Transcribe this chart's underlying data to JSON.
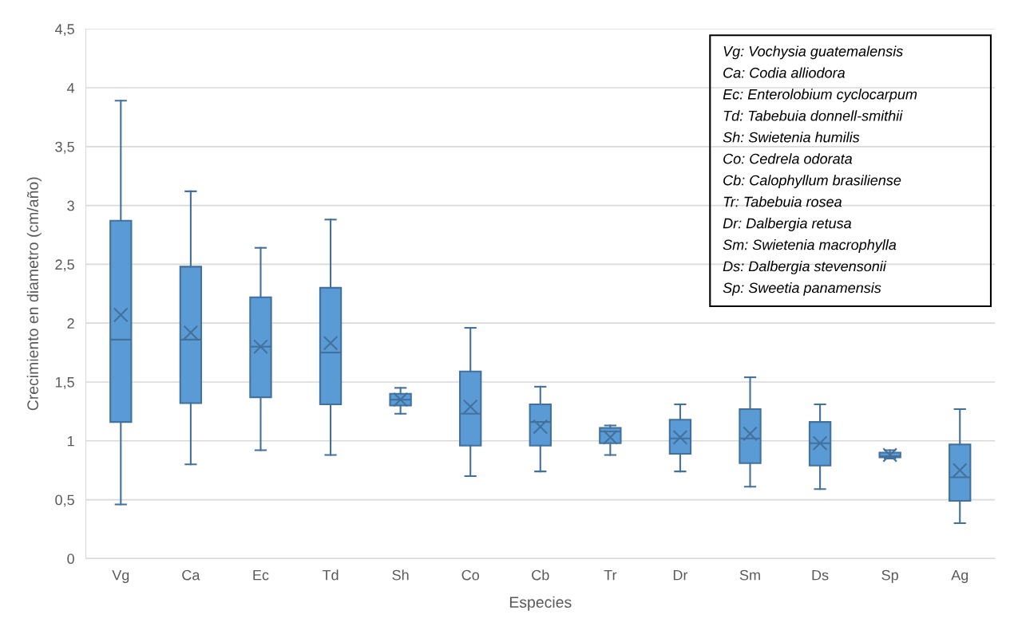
{
  "chart_data": {
    "type": "box",
    "xlabel": "Especies",
    "ylabel": "Crecimiento en diametro (cm/año)",
    "categories": [
      "Vg",
      "Ca",
      "Ec",
      "Td",
      "Sh",
      "Co",
      "Cb",
      "Tr",
      "Dr",
      "Sm",
      "Ds",
      "Sp",
      "Ag"
    ],
    "color": "#5b9bd5",
    "boxes": [
      {
        "low": 0.46,
        "q1": 1.16,
        "median": 1.86,
        "q3": 2.87,
        "high": 3.89,
        "mean": 2.07
      },
      {
        "low": 0.8,
        "q1": 1.32,
        "median": 1.86,
        "q3": 2.48,
        "high": 3.12,
        "mean": 1.92
      },
      {
        "low": 0.92,
        "q1": 1.37,
        "median": 1.8,
        "q3": 2.22,
        "high": 2.64,
        "mean": 1.8
      },
      {
        "low": 0.88,
        "q1": 1.31,
        "median": 1.75,
        "q3": 2.3,
        "high": 2.88,
        "mean": 1.83
      },
      {
        "low": 1.23,
        "q1": 1.3,
        "median": 1.35,
        "q3": 1.4,
        "high": 1.45,
        "mean": 1.35
      },
      {
        "low": 0.7,
        "q1": 0.96,
        "median": 1.23,
        "q3": 1.59,
        "high": 1.96,
        "mean": 1.29
      },
      {
        "low": 0.74,
        "q1": 0.96,
        "median": 1.16,
        "q3": 1.31,
        "high": 1.46,
        "mean": 1.12
      },
      {
        "low": 0.88,
        "q1": 0.98,
        "median": 1.08,
        "q3": 1.11,
        "high": 1.13,
        "mean": 1.03
      },
      {
        "low": 0.74,
        "q1": 0.89,
        "median": 1.02,
        "q3": 1.18,
        "high": 1.31,
        "mean": 1.03
      },
      {
        "low": 0.61,
        "q1": 0.81,
        "median": 1.02,
        "q3": 1.27,
        "high": 1.54,
        "mean": 1.06
      },
      {
        "low": 0.59,
        "q1": 0.79,
        "median": 0.98,
        "q3": 1.16,
        "high": 1.31,
        "mean": 0.98
      },
      {
        "low": 0.85,
        "q1": 0.86,
        "median": 0.87,
        "q3": 0.9,
        "high": 0.92,
        "mean": 0.88
      },
      {
        "low": 0.3,
        "q1": 0.49,
        "median": 0.69,
        "q3": 0.97,
        "high": 1.27,
        "mean": 0.75
      }
    ],
    "ylim": [
      0,
      4.5
    ],
    "yticks": [
      0,
      {
        "value": 0.5,
        "label": "0,5"
      },
      1,
      {
        "value": 1.5,
        "label": "1,5"
      },
      2,
      {
        "value": 2.5,
        "label": "2,5"
      },
      3,
      {
        "value": 3.5,
        "label": "3,5"
      },
      4,
      {
        "value": 4.5,
        "label": "4,5"
      }
    ],
    "grid": "y",
    "marker": "cross",
    "annotations": [
      "Vg: Vochysia guatemalensis",
      "Ca: Codia alliodora",
      "Ec: Enterolobium cyclocarpum",
      "Td: Tabebuia donnell-smithii",
      "Sh: Swietenia humilis",
      "Co: Cedrela odorata",
      "Cb: Calophyllum brasiliense",
      "Tr: Tabebuia rosea",
      "Dr: Dalbergia retusa",
      "Sm: Swietenia macrophylla",
      "Ds: Dalbergia stevensonii",
      "Sp: Sweetia panamensis"
    ]
  }
}
